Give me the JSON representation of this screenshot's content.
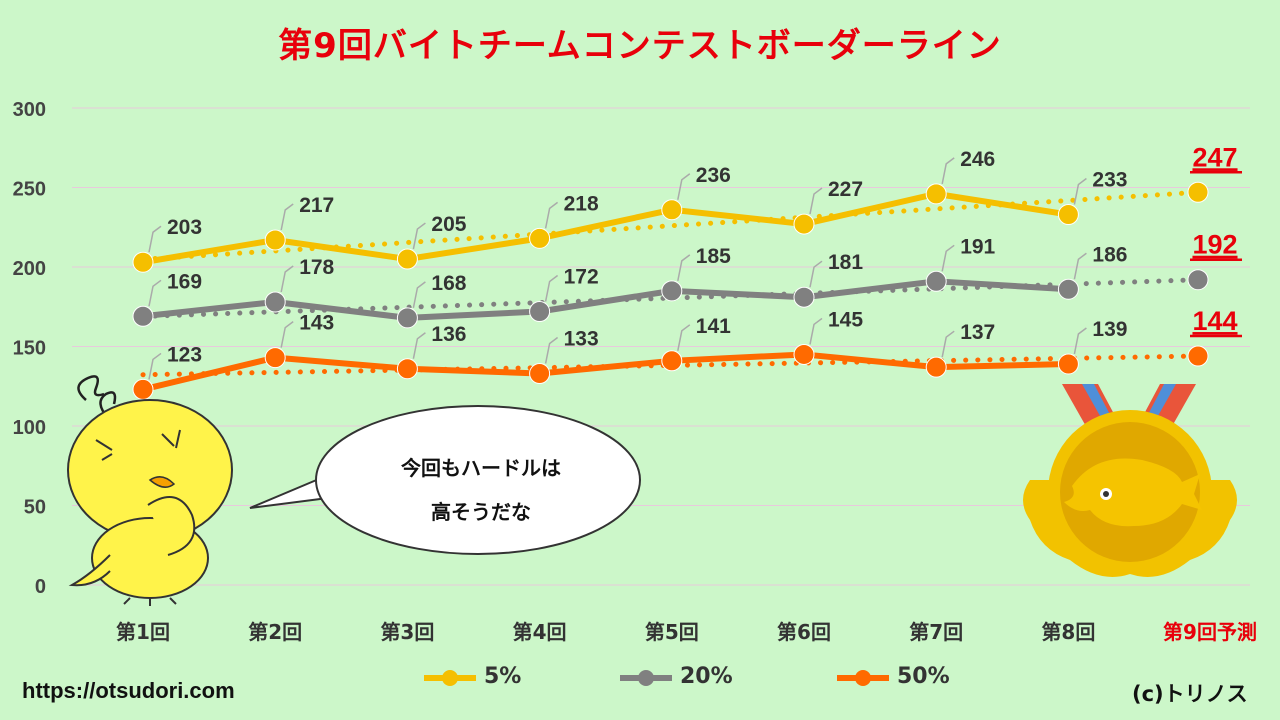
{
  "title": "第9回バイトチームコンテストボーダーライン",
  "footer": {
    "url": "https://otsudori.com",
    "credit": "(c)トリノス"
  },
  "speech_bubble": {
    "line1": "今回もハードルは",
    "line2": "高そうだな"
  },
  "legend": [
    {
      "label": "5%",
      "color": "#f5bf00"
    },
    {
      "label": "20%",
      "color": "#808080"
    },
    {
      "label": "50%",
      "color": "#ff6a00"
    }
  ],
  "chart_data": {
    "type": "line",
    "title": "第9回バイトチームコンテストボーダーライン",
    "categories": [
      "第1回",
      "第2回",
      "第3回",
      "第4回",
      "第5回",
      "第6回",
      "第7回",
      "第8回"
    ],
    "forecast_label": "第9回予測",
    "yticks": [
      "0",
      "50",
      "100",
      "150",
      "200",
      "250",
      "300"
    ],
    "ylim": [
      0,
      300
    ],
    "grid": true,
    "legend_position": "bottom",
    "series": [
      {
        "name": "5%",
        "color": "#f5bf00",
        "values": [
          203,
          217,
          205,
          218,
          236,
          227,
          246,
          233
        ],
        "forecast": 247
      },
      {
        "name": "20%",
        "color": "#808080",
        "values": [
          169,
          178,
          168,
          172,
          185,
          181,
          191,
          186
        ],
        "forecast": 192
      },
      {
        "name": "50%",
        "color": "#ff6a00",
        "values": [
          123,
          143,
          136,
          133,
          141,
          145,
          137,
          139
        ],
        "forecast": 144
      }
    ]
  }
}
